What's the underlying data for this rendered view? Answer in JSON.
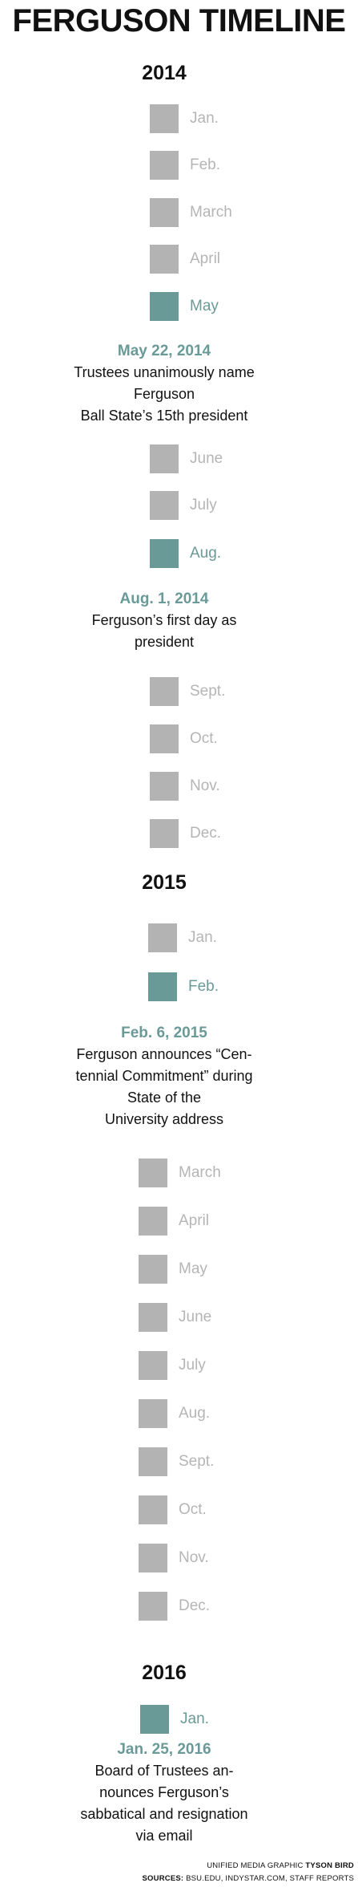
{
  "title": "FERGUSON TIMELINE",
  "colors": {
    "highlight": "#6a9a98",
    "box_gray": "#b3b3b3",
    "month_gray": "#b5b5b5"
  },
  "years": {
    "y2014": "2014",
    "y2015": "2015",
    "y2016": "2016"
  },
  "months_2014": [
    {
      "label": "Jan.",
      "highlighted": false
    },
    {
      "label": "Feb.",
      "highlighted": false
    },
    {
      "label": "March",
      "highlighted": false
    },
    {
      "label": "April",
      "highlighted": false
    },
    {
      "label": "May",
      "highlighted": true
    },
    {
      "label": "June",
      "highlighted": false
    },
    {
      "label": "July",
      "highlighted": false
    },
    {
      "label": "Aug.",
      "highlighted": true
    },
    {
      "label": "Sept.",
      "highlighted": false
    },
    {
      "label": "Oct.",
      "highlighted": false
    },
    {
      "label": "Nov.",
      "highlighted": false
    },
    {
      "label": "Dec.",
      "highlighted": false
    }
  ],
  "months_2015": [
    {
      "label": "Jan.",
      "highlighted": false
    },
    {
      "label": "Feb.",
      "highlighted": true
    },
    {
      "label": "March",
      "highlighted": false
    },
    {
      "label": "April",
      "highlighted": false
    },
    {
      "label": "May",
      "highlighted": false
    },
    {
      "label": "June",
      "highlighted": false
    },
    {
      "label": "July",
      "highlighted": false
    },
    {
      "label": "Aug.",
      "highlighted": false
    },
    {
      "label": "Sept.",
      "highlighted": false
    },
    {
      "label": "Oct.",
      "highlighted": false
    },
    {
      "label": "Nov.",
      "highlighted": false
    },
    {
      "label": "Dec.",
      "highlighted": false
    }
  ],
  "months_2016": [
    {
      "label": "Jan.",
      "highlighted": true
    }
  ],
  "events": {
    "may2014": {
      "date": "May 22, 2014",
      "lines": [
        "Trustees unanimously name",
        "Ferguson",
        "Ball State’s 15th president"
      ]
    },
    "aug2014": {
      "date": "Aug. 1, 2014",
      "lines": [
        "Ferguson’s first day as",
        "president"
      ]
    },
    "feb2015": {
      "date": "Feb. 6, 2015",
      "lines": [
        "Ferguson announces “Cen-",
        "tennial Commitment” during",
        "State of the",
        "University address"
      ]
    },
    "jan2016": {
      "date": "Jan. 25, 2016",
      "lines": [
        "Board of Trustees an-",
        "nounces Ferguson’s",
        "sabbatical and resignation",
        "via email"
      ]
    }
  },
  "credit": {
    "line1_prefix": "UNIFIED MEDIA GRAPHIC",
    "line1_name": "TYSON BIRD",
    "line2_prefix": "SOURCES:",
    "line2_text": "BSU.EDU, INDYSTAR.COM, STAFF REPORTS"
  }
}
